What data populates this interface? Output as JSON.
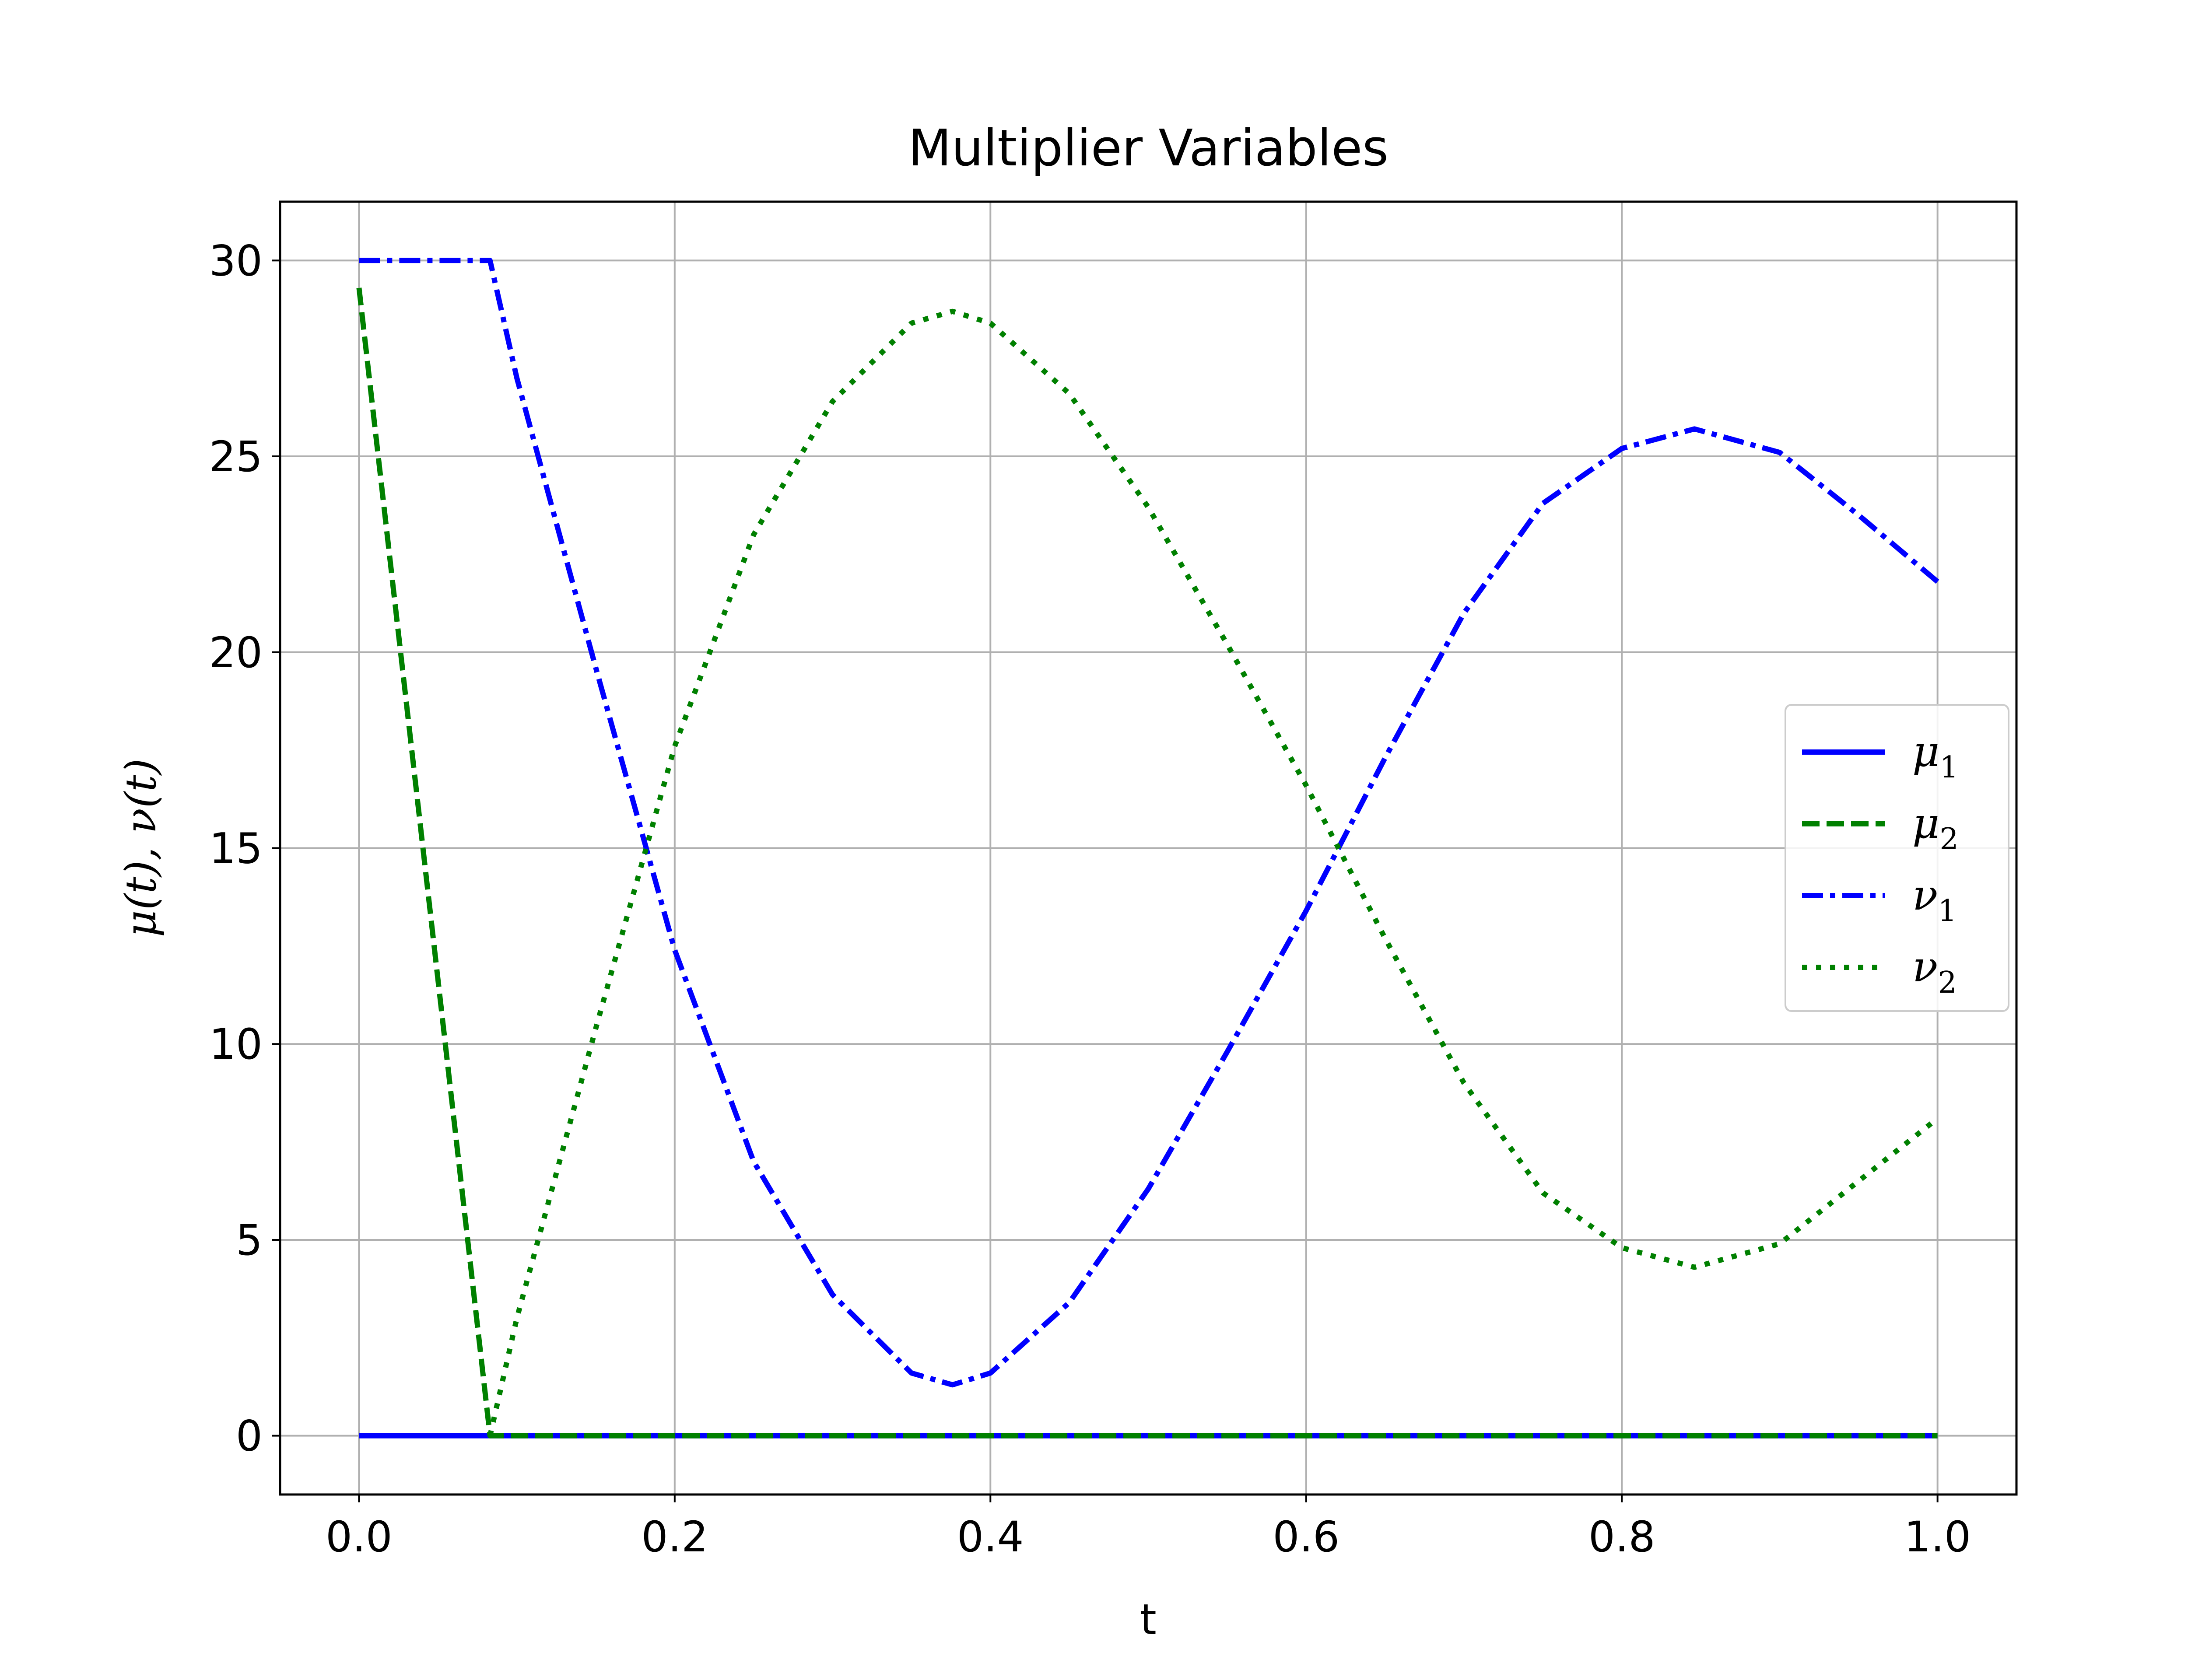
{
  "chart_data": {
    "type": "line",
    "title": "Multiplier Variables",
    "xlabel": "t",
    "ylabel": "μ(t), ν(t)",
    "xlim": [
      -0.05,
      1.05
    ],
    "ylim": [
      -1.5,
      31.5
    ],
    "xticks": [
      0.0,
      0.2,
      0.4,
      0.6,
      0.8,
      1.0
    ],
    "xtick_labels": [
      "0.0",
      "0.2",
      "0.4",
      "0.6",
      "0.8",
      "1.0"
    ],
    "yticks": [
      0,
      5,
      10,
      15,
      20,
      25,
      30
    ],
    "ytick_labels": [
      "0",
      "5",
      "10",
      "15",
      "20",
      "25",
      "30"
    ],
    "grid": true,
    "legend_position": "center-right",
    "series": [
      {
        "name": "μ",
        "subscript": "1",
        "color": "#0000ff",
        "style": "solid",
        "x": [
          0.0,
          0.2,
          0.4,
          0.6,
          0.8,
          1.0
        ],
        "y": [
          0,
          0,
          0,
          0,
          0,
          0
        ]
      },
      {
        "name": "μ",
        "subscript": "2",
        "color": "#008000",
        "style": "dashed",
        "x": [
          0.0,
          0.083,
          0.2,
          0.4,
          0.6,
          0.8,
          1.0
        ],
        "y": [
          29.3,
          0,
          0,
          0,
          0,
          0,
          0
        ]
      },
      {
        "name": "ν",
        "subscript": "1",
        "color": "#0000ff",
        "style": "dashdot",
        "x": [
          0.0,
          0.083,
          0.1,
          0.15,
          0.2,
          0.25,
          0.3,
          0.35,
          0.376,
          0.4,
          0.45,
          0.5,
          0.55,
          0.6,
          0.65,
          0.7,
          0.75,
          0.8,
          0.846,
          0.9,
          0.95,
          1.0
        ],
        "y": [
          30,
          30,
          27.0,
          19.6,
          12.4,
          7.0,
          3.6,
          1.6,
          1.3,
          1.6,
          3.4,
          6.3,
          9.8,
          13.4,
          17.3,
          21.0,
          23.8,
          25.2,
          25.7,
          25.1,
          23.5,
          21.8
        ]
      },
      {
        "name": "ν",
        "subscript": "2",
        "color": "#008000",
        "style": "dotted",
        "x": [
          0.083,
          0.1,
          0.15,
          0.2,
          0.25,
          0.3,
          0.35,
          0.376,
          0.4,
          0.45,
          0.5,
          0.55,
          0.6,
          0.65,
          0.7,
          0.75,
          0.8,
          0.846,
          0.9,
          0.95,
          1.0
        ],
        "y": [
          0,
          3.0,
          10.4,
          17.6,
          23.0,
          26.4,
          28.4,
          28.7,
          28.4,
          26.6,
          23.7,
          20.2,
          16.6,
          12.7,
          9.0,
          6.2,
          4.8,
          4.3,
          4.9,
          6.5,
          8.1
        ]
      }
    ]
  }
}
